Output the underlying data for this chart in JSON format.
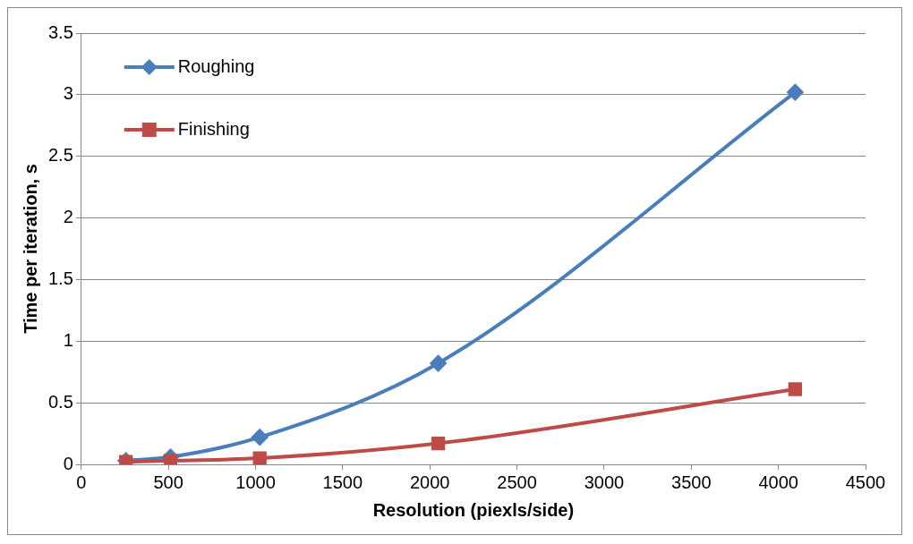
{
  "chart_data": {
    "type": "line",
    "xlabel": "Resolution (piexls/side)",
    "ylabel": "Time per iteration, s",
    "x": [
      256,
      512,
      1024,
      2048,
      4096
    ],
    "series": [
      {
        "name": "Roughing",
        "color": "#4a7ebb",
        "marker": "diamond",
        "values": [
          0.03,
          0.06,
          0.22,
          0.82,
          3.02
        ]
      },
      {
        "name": "Finishing",
        "color": "#be4b48",
        "marker": "square",
        "values": [
          0.02,
          0.03,
          0.05,
          0.17,
          0.61
        ]
      }
    ],
    "xlim": [
      0,
      4500
    ],
    "xticks": [
      0,
      500,
      1000,
      1500,
      2000,
      2500,
      3000,
      3500,
      4000,
      4500
    ],
    "ylim": [
      0,
      3.5
    ],
    "yticks": [
      0,
      0.5,
      1,
      1.5,
      2,
      2.5,
      3,
      3.5
    ],
    "grid": "y",
    "legend": "top left"
  }
}
